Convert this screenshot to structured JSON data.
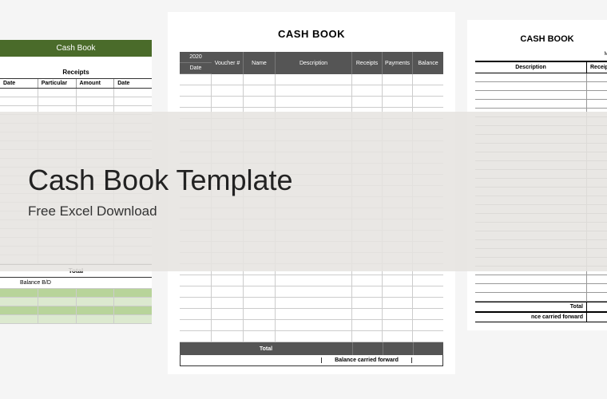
{
  "overlay": {
    "title": "Cash Book Template",
    "subtitle": "Free Excel Download"
  },
  "template1": {
    "header": "Cash Book",
    "section_label": "Receipts",
    "columns": [
      "Date",
      "Particular",
      "Amount",
      "Date"
    ],
    "body_rows": 20,
    "green_rows": 4,
    "total_label": "Total",
    "balance_label": "Balance B/D",
    "colors": {
      "header_bg": "#4a6b2a",
      "green_row": "#b8d49a",
      "lightgreen_row": "#dce9cf"
    }
  },
  "template2": {
    "title": "CASH BOOK",
    "year": "2020",
    "date_label": "Date",
    "columns": [
      "Voucher #",
      "Name",
      "Description",
      "Receipts",
      "Payments",
      "Balance"
    ],
    "body_rows": 24,
    "total_label": "Total",
    "bcf_label": "Balance carried forward",
    "colors": {
      "header_bg": "#555555"
    }
  },
  "template3": {
    "title": "CASH BOOK",
    "month_label": "Month:",
    "columns": [
      "Description",
      "Receipts"
    ],
    "body_rows": 26,
    "total_label": "Total",
    "bcf_label": "nce carried forward"
  }
}
